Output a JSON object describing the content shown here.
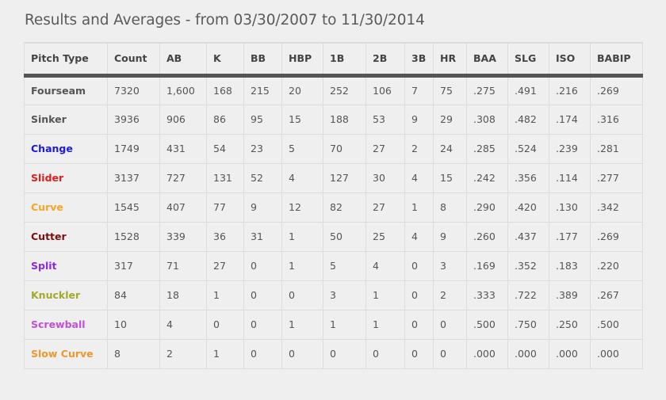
{
  "page": {
    "title": "Results and Averages - from 03/30/2007 to 11/30/2014"
  },
  "table": {
    "columns": [
      "Pitch Type",
      "Count",
      "AB",
      "K",
      "BB",
      "HBP",
      "1B",
      "2B",
      "3B",
      "HR",
      "BAA",
      "SLG",
      "ISO",
      "BABIP"
    ],
    "rows": [
      {
        "pitch": "Fourseam",
        "color": "#555555",
        "cells": [
          "7320",
          "1,600",
          "168",
          "215",
          "20",
          "252",
          "106",
          "7",
          "75",
          ".275",
          ".491",
          ".216",
          ".269"
        ]
      },
      {
        "pitch": "Sinker",
        "color": "#555555",
        "cells": [
          "3936",
          "906",
          "86",
          "95",
          "15",
          "188",
          "53",
          "9",
          "29",
          ".308",
          ".482",
          ".174",
          ".316"
        ]
      },
      {
        "pitch": "Change",
        "color": "#1a1adf",
        "cells": [
          "1749",
          "431",
          "54",
          "23",
          "5",
          "70",
          "27",
          "2",
          "24",
          ".285",
          ".524",
          ".239",
          ".281"
        ]
      },
      {
        "pitch": "Slider",
        "color": "#e11d1d",
        "cells": [
          "3137",
          "727",
          "131",
          "52",
          "4",
          "127",
          "30",
          "4",
          "15",
          ".242",
          ".356",
          ".114",
          ".277"
        ]
      },
      {
        "pitch": "Curve",
        "color": "#f5a623",
        "cells": [
          "1545",
          "407",
          "77",
          "9",
          "12",
          "82",
          "27",
          "1",
          "8",
          ".290",
          ".420",
          ".130",
          ".342"
        ]
      },
      {
        "pitch": "Cutter",
        "color": "#7a0d0d",
        "cells": [
          "1528",
          "339",
          "36",
          "31",
          "1",
          "50",
          "25",
          "4",
          "9",
          ".260",
          ".437",
          ".177",
          ".269"
        ]
      },
      {
        "pitch": "Split",
        "color": "#8a2be2",
        "cells": [
          "317",
          "71",
          "27",
          "0",
          "1",
          "5",
          "4",
          "0",
          "3",
          ".169",
          ".352",
          ".183",
          ".220"
        ]
      },
      {
        "pitch": "Knuckler",
        "color": "#a2a928",
        "cells": [
          "84",
          "18",
          "1",
          "0",
          "0",
          "3",
          "1",
          "0",
          "2",
          ".333",
          ".722",
          ".389",
          ".267"
        ]
      },
      {
        "pitch": "Screwball",
        "color": "#c04fdb",
        "cells": [
          "10",
          "4",
          "0",
          "0",
          "1",
          "1",
          "1",
          "0",
          "0",
          ".500",
          ".750",
          ".250",
          ".500"
        ]
      },
      {
        "pitch": "Slow Curve",
        "color": "#f0962e",
        "cells": [
          "8",
          "2",
          "1",
          "0",
          "0",
          "0",
          "0",
          "0",
          "0",
          ".000",
          ".000",
          ".000",
          ".000"
        ]
      }
    ]
  }
}
